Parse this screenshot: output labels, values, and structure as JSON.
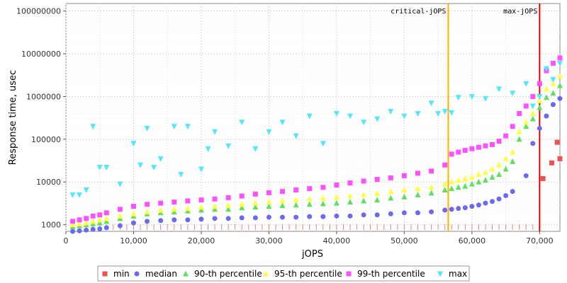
{
  "chart_data": {
    "type": "scatter",
    "xlabel": "jOPS",
    "ylabel": "Response time, usec",
    "xlim": [
      0,
      73000
    ],
    "ylim": [
      700,
      150000000
    ],
    "yscale": "log",
    "grid": true,
    "legend_position": "bottom",
    "x_ticks": [
      0,
      10000,
      20000,
      30000,
      40000,
      50000,
      60000,
      70000
    ],
    "x_tick_labels": [
      "0",
      "10,000",
      "20,000",
      "30,000",
      "40,000",
      "50,000",
      "60,000",
      "70,000"
    ],
    "y_ticks": [
      1000,
      10000,
      100000,
      1000000,
      10000000,
      100000000
    ],
    "y_tick_labels": [
      "1000",
      "10000",
      "100000",
      "1000000",
      "10000000",
      "100000000"
    ],
    "markers": [
      {
        "label": "critical-jOPS",
        "x": 56500,
        "color": "#ffb000"
      },
      {
        "label": "max-jOPS",
        "x": 70000,
        "color": "#e00000"
      }
    ],
    "series": [
      {
        "name": "min",
        "color": "#f05050",
        "shape": "square",
        "x": [
          70500,
          71800,
          72600,
          73000
        ],
        "values": [
          12000,
          28000,
          85000,
          35000
        ]
      },
      {
        "name": "median",
        "color": "#6a6af0",
        "shape": "circle",
        "x": [
          1000,
          2000,
          3000,
          4000,
          5000,
          6000,
          8000,
          10000,
          12000,
          14000,
          16000,
          18000,
          20000,
          22000,
          24000,
          26000,
          28000,
          30000,
          32000,
          34000,
          36000,
          38000,
          40000,
          42000,
          44000,
          46000,
          48000,
          50000,
          52000,
          54000,
          56000,
          57000,
          58000,
          59000,
          60000,
          61000,
          62000,
          63000,
          64000,
          65000,
          66000,
          68000,
          69000,
          70000,
          71000,
          72000,
          73000
        ],
        "values": [
          700,
          720,
          750,
          780,
          800,
          850,
          950,
          1100,
          1200,
          1250,
          1300,
          1300,
          1350,
          1400,
          1400,
          1450,
          1450,
          1500,
          1500,
          1500,
          1550,
          1550,
          1600,
          1600,
          1700,
          1700,
          1800,
          1900,
          1900,
          2000,
          2200,
          2300,
          2400,
          2500,
          2700,
          2900,
          3200,
          3500,
          4000,
          4800,
          6000,
          14000,
          80000,
          180000,
          350000,
          650000,
          900000
        ]
      },
      {
        "name": "90-th percentile",
        "color": "#60e060",
        "shape": "triangle-up",
        "x": [
          1000,
          2000,
          3000,
          4000,
          5000,
          6000,
          8000,
          10000,
          12000,
          14000,
          16000,
          18000,
          20000,
          22000,
          24000,
          26000,
          28000,
          30000,
          32000,
          34000,
          36000,
          38000,
          40000,
          42000,
          44000,
          46000,
          48000,
          50000,
          52000,
          54000,
          56000,
          57000,
          58000,
          59000,
          60000,
          61000,
          62000,
          63000,
          64000,
          65000,
          66000,
          67000,
          68000,
          69000,
          70000,
          71000,
          72000,
          73000
        ],
        "values": [
          900,
          950,
          1000,
          1050,
          1100,
          1200,
          1400,
          1600,
          1800,
          1900,
          2000,
          2100,
          2200,
          2300,
          2300,
          2500,
          2600,
          2700,
          2800,
          2900,
          3000,
          3100,
          3200,
          3400,
          3600,
          3800,
          4200,
          4500,
          5000,
          5500,
          6500,
          7000,
          7500,
          8000,
          9000,
          10000,
          11000,
          13000,
          15000,
          20000,
          30000,
          100000,
          200000,
          300000,
          550000,
          950000,
          1200000,
          1800000
        ]
      },
      {
        "name": "95-th percentile",
        "color": "#ffff40",
        "shape": "triangle-up",
        "x": [
          1000,
          2000,
          3000,
          4000,
          5000,
          6000,
          8000,
          10000,
          12000,
          14000,
          16000,
          18000,
          20000,
          22000,
          24000,
          26000,
          28000,
          30000,
          32000,
          34000,
          36000,
          38000,
          40000,
          42000,
          44000,
          46000,
          48000,
          50000,
          52000,
          54000,
          56000,
          57000,
          58000,
          59000,
          60000,
          61000,
          62000,
          63000,
          64000,
          65000,
          66000,
          67000,
          68000,
          69000,
          70000,
          71000,
          72000,
          73000
        ],
        "values": [
          1000,
          1050,
          1100,
          1200,
          1300,
          1400,
          1600,
          1800,
          2000,
          2200,
          2300,
          2400,
          2600,
          2700,
          2800,
          3000,
          3200,
          3400,
          3600,
          3800,
          4000,
          4200,
          4400,
          4700,
          5000,
          5400,
          5900,
          6500,
          7000,
          7500,
          9000,
          10000,
          11000,
          12000,
          13000,
          15000,
          17000,
          20000,
          25000,
          35000,
          50000,
          150000,
          250000,
          400000,
          800000,
          1500000,
          2000000,
          3000000
        ]
      },
      {
        "name": "99-th percentile",
        "color": "#ff50ff",
        "shape": "square",
        "x": [
          1000,
          2000,
          3000,
          4000,
          5000,
          6000,
          8000,
          10000,
          12000,
          14000,
          16000,
          18000,
          20000,
          22000,
          24000,
          26000,
          28000,
          30000,
          32000,
          34000,
          36000,
          38000,
          40000,
          42000,
          44000,
          46000,
          48000,
          50000,
          52000,
          54000,
          56000,
          57000,
          58000,
          59000,
          60000,
          61000,
          62000,
          63000,
          64000,
          65000,
          66000,
          67000,
          68000,
          69000,
          70000,
          71000,
          72000,
          73000
        ],
        "values": [
          1200,
          1300,
          1400,
          1600,
          1700,
          1900,
          2300,
          2700,
          3000,
          3200,
          3400,
          3600,
          3800,
          4000,
          4300,
          4700,
          5200,
          5600,
          6000,
          6500,
          7000,
          7500,
          8500,
          9500,
          10500,
          11500,
          12500,
          14000,
          16000,
          18000,
          25000,
          45000,
          50000,
          55000,
          60000,
          65000,
          70000,
          75000,
          90000,
          120000,
          200000,
          400000,
          600000,
          1000000,
          2000000,
          4000000,
          6000000,
          8000000
        ]
      },
      {
        "name": "max",
        "color": "#50e8ff",
        "shape": "triangle-down",
        "x": [
          1000,
          2000,
          3000,
          4000,
          5000,
          6000,
          8000,
          10000,
          11000,
          12000,
          13000,
          14000,
          16000,
          17000,
          18000,
          20000,
          21000,
          22000,
          24000,
          26000,
          28000,
          30000,
          32000,
          34000,
          36000,
          38000,
          40000,
          42000,
          44000,
          46000,
          48000,
          50000,
          52000,
          54000,
          55000,
          56000,
          57000,
          58000,
          60000,
          62000,
          64000,
          66000,
          68000,
          69000,
          70000,
          71000,
          72000,
          73000
        ],
        "values": [
          5000,
          5000,
          6500,
          200000,
          22000,
          22000,
          9000,
          80000,
          25000,
          180000,
          22000,
          35000,
          200000,
          15000,
          200000,
          20000,
          60000,
          150000,
          70000,
          250000,
          60000,
          150000,
          250000,
          120000,
          350000,
          80000,
          400000,
          350000,
          250000,
          300000,
          450000,
          350000,
          400000,
          700000,
          400000,
          450000,
          420000,
          950000,
          1000000,
          900000,
          1500000,
          1200000,
          2000000,
          600000,
          1000000,
          4500000,
          2500000,
          6000000
        ]
      }
    ]
  }
}
